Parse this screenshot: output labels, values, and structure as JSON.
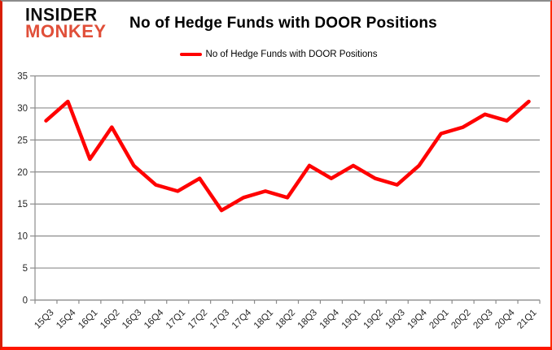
{
  "brand": {
    "line1": "INSIDER",
    "line2": "MONKEY"
  },
  "header": {
    "title": "No of Hedge Funds with DOOR Positions"
  },
  "legend": {
    "label": "No of Hedge Funds with DOOR Positions"
  },
  "colors": {
    "line": "#FF0000",
    "grid": "#8C8C8C",
    "axis": "#8C8C8C",
    "tick_text": "#262626",
    "brand_black": "#0D0D0D",
    "brand_red": "#E04F39",
    "border_red": "#FF1500",
    "border_top_gray": "#8C8C8C"
  },
  "chart_data": {
    "type": "line",
    "title": "No of Hedge Funds with DOOR Positions",
    "categories": [
      "15Q3",
      "15Q4",
      "16Q1",
      "16Q2",
      "16Q3",
      "16Q4",
      "17Q1",
      "17Q2",
      "17Q3",
      "17Q4",
      "18Q1",
      "18Q2",
      "18Q3",
      "18Q4",
      "19Q1",
      "19Q2",
      "19Q3",
      "19Q4",
      "20Q1",
      "20Q2",
      "20Q3",
      "20Q4",
      "21Q1"
    ],
    "series": [
      {
        "name": "No of Hedge Funds with DOOR Positions",
        "color": "#FF0000",
        "values": [
          28,
          31,
          22,
          27,
          21,
          18,
          17,
          19,
          14,
          16,
          17,
          16,
          21,
          19,
          21,
          19,
          18,
          21,
          26,
          27,
          29,
          28,
          31
        ]
      }
    ],
    "xlabel": "",
    "ylabel": "",
    "ylim": [
      0,
      35
    ],
    "ytick_step": 5,
    "grid": true,
    "legend_position": "top-center",
    "x_tick_label_rotation": -45
  }
}
